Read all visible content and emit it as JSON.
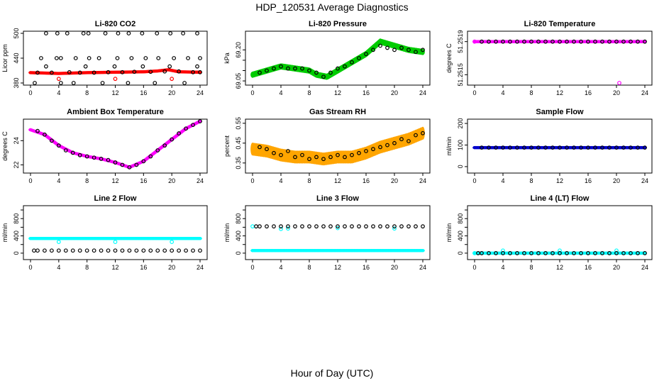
{
  "figure": {
    "title": "HDP_120531  Average Diagnostics",
    "xlabel": "Hour of Day (UTC)"
  },
  "chart_data": [
    {
      "type": "scatter",
      "title": "Li-820 CO2",
      "ylabel": "Licor ppm",
      "xlim": [
        0,
        24
      ],
      "ylim": [
        380,
        500
      ],
      "xticks": [
        0,
        4,
        8,
        12,
        16,
        20,
        24
      ],
      "yticks": [
        380,
        440,
        500
      ],
      "series": [
        {
          "color": "#ff0000",
          "style": "band",
          "x": [
            0,
            4,
            8,
            12,
            16,
            18,
            19.5,
            21,
            24
          ],
          "y": [
            405,
            403,
            405,
            406,
            407,
            409,
            412,
            407,
            406
          ],
          "spread": 2
        },
        {
          "color": "#ff0000",
          "x": [
            4,
            12,
            20
          ],
          "y": [
            390,
            390,
            390
          ]
        },
        {
          "color": "#000000",
          "x": [
            0.6,
            2.2,
            4.3,
            6.1,
            7.8,
            10.2,
            11.9,
            13.8,
            15.9,
            17.6,
            19.7,
            21.8,
            23.6
          ],
          "y": [
            380,
            420,
            380,
            380,
            420,
            380,
            420,
            380,
            420,
            380,
            420,
            380,
            420
          ]
        },
        {
          "color": "#000000",
          "x": [
            2.2,
            3.8,
            5.2,
            7.5,
            8.2,
            10.6,
            12.4,
            13.9,
            15.8,
            17.9,
            19.8,
            21.6,
            23.6
          ],
          "y": [
            500,
            500,
            500,
            500,
            500,
            500,
            500,
            500,
            500,
            500,
            500,
            500,
            500
          ]
        },
        {
          "color": "#000000",
          "x": [
            1.5,
            3.7,
            4.3,
            6.4,
            8.3,
            9.7,
            12.3,
            14.3,
            16.3,
            18.1,
            20.3,
            22.3,
            24
          ],
          "y": [
            440,
            440,
            440,
            440,
            440,
            440,
            440,
            440,
            440,
            440,
            440,
            440,
            440
          ]
        },
        {
          "color": "#000000",
          "x": [
            1,
            3,
            5.5,
            7,
            9,
            11,
            13,
            14.7,
            17,
            19,
            21,
            23,
            24
          ],
          "y": [
            405,
            405,
            406,
            405,
            405,
            406,
            406,
            407,
            407,
            408,
            408,
            406,
            406
          ]
        }
      ]
    },
    {
      "type": "scatter",
      "title": "Li-820 Pressure",
      "ylabel": "kPa",
      "xlim": [
        0,
        24
      ],
      "ylim": [
        69.04,
        69.28
      ],
      "xticks": [
        0,
        4,
        8,
        12,
        16,
        20,
        24
      ],
      "yticks": [
        69.05,
        69.1,
        69.15,
        69.2
      ],
      "ytick_labels": [
        "69.05",
        "",
        "",
        "69.20"
      ],
      "series": [
        {
          "color": "#00cc00",
          "style": "band",
          "x": [
            0,
            2,
            4,
            6,
            8,
            9,
            10.5,
            12,
            14,
            16,
            18,
            20,
            22,
            24
          ],
          "y": [
            69.08,
            69.1,
            69.12,
            69.11,
            69.1,
            69.08,
            69.07,
            69.1,
            69.14,
            69.18,
            69.24,
            69.22,
            69.2,
            69.19
          ],
          "spread": 0.018
        },
        {
          "color": "#000000",
          "x": [
            1,
            2,
            3,
            4,
            5,
            6,
            7,
            8,
            9,
            10,
            11,
            12,
            13,
            14,
            15,
            16,
            17,
            18,
            19,
            20,
            21,
            22,
            23,
            24
          ],
          "y": [
            69.09,
            69.1,
            69.11,
            69.12,
            69.11,
            69.11,
            69.11,
            69.1,
            69.09,
            69.07,
            69.09,
            69.11,
            69.12,
            69.14,
            69.16,
            69.18,
            69.2,
            69.22,
            69.21,
            69.2,
            69.21,
            69.2,
            69.19,
            69.2
          ]
        }
      ]
    },
    {
      "type": "scatter",
      "title": "Li-820 Temperature",
      "ylabel": "degrees C",
      "xlim": [
        0,
        24
      ],
      "ylim": [
        51.2514,
        51.252
      ],
      "xticks": [
        0,
        4,
        8,
        12,
        16,
        20,
        24
      ],
      "yticks": [
        51.2515,
        51.2519
      ],
      "ytick_labels": [
        "51.2515",
        "51.2519"
      ],
      "series": [
        {
          "color": "#ff00ff",
          "style": "band",
          "x": [
            0,
            24
          ],
          "y": [
            51.2519,
            51.2519
          ],
          "spread": 0
        },
        {
          "color": "#ff00ff",
          "x": [
            0,
            20.4
          ],
          "y": [
            51.2519,
            51.2514
          ]
        },
        {
          "color": "#000000",
          "x": [
            1,
            2,
            3,
            4,
            5,
            6,
            7,
            8,
            9,
            10,
            11,
            12,
            13,
            14,
            15,
            16,
            17,
            18,
            19,
            20,
            21,
            22,
            23,
            24
          ],
          "y": [
            51.2519,
            51.2519,
            51.2519,
            51.2519,
            51.2519,
            51.2519,
            51.2519,
            51.2519,
            51.2519,
            51.2519,
            51.2519,
            51.2519,
            51.2519,
            51.2519,
            51.2519,
            51.2519,
            51.2519,
            51.2519,
            51.2519,
            51.2519,
            51.2519,
            51.2519,
            51.2519,
            51.2519
          ]
        }
      ]
    },
    {
      "type": "scatter",
      "title": "Ambient Box Temperature",
      "ylabel": "degrees C",
      "xlim": [
        0,
        24
      ],
      "ylim": [
        21.5,
        25.6
      ],
      "xticks": [
        0,
        4,
        8,
        12,
        16,
        20,
        24
      ],
      "yticks": [
        22,
        24
      ],
      "series": [
        {
          "color": "#ff00ff",
          "style": "band",
          "x": [
            0,
            2,
            4,
            6,
            8,
            10,
            12,
            14,
            16,
            18,
            20,
            22,
            24
          ],
          "y": [
            24.9,
            24.5,
            23.6,
            23.0,
            22.7,
            22.5,
            22.2,
            21.8,
            22.3,
            23.2,
            24.1,
            25.0,
            25.6
          ],
          "spread": 0.08
        },
        {
          "color": "#000000",
          "x": [
            1,
            2,
            3,
            4,
            5,
            6,
            7,
            8,
            9,
            10,
            11,
            12,
            13,
            14,
            15,
            16,
            17,
            18,
            19,
            20,
            21,
            22,
            23,
            24
          ],
          "y": [
            24.8,
            24.5,
            24.0,
            23.6,
            23.2,
            23.0,
            22.8,
            22.7,
            22.6,
            22.5,
            22.4,
            22.2,
            22.0,
            21.8,
            22.0,
            22.3,
            22.7,
            23.2,
            23.6,
            24.1,
            24.6,
            25.0,
            25.3,
            25.6
          ]
        }
      ]
    },
    {
      "type": "scatter",
      "title": "Gas Stream RH",
      "ylabel": "percent",
      "xlim": [
        0,
        24
      ],
      "ylim": [
        0.31,
        0.56
      ],
      "xticks": [
        0,
        4,
        8,
        12,
        16,
        20,
        24
      ],
      "yticks": [
        0.35,
        0.45,
        0.55
      ],
      "series": [
        {
          "color": "#ffa500",
          "style": "band",
          "x": [
            0,
            2,
            4,
            6,
            8,
            10,
            12,
            14,
            16,
            18,
            20,
            22,
            24
          ],
          "y": [
            0.42,
            0.41,
            0.39,
            0.38,
            0.38,
            0.37,
            0.38,
            0.38,
            0.4,
            0.43,
            0.45,
            0.47,
            0.5
          ],
          "spread": 0.04
        },
        {
          "color": "#000000",
          "x": [
            1,
            2,
            3,
            4,
            5,
            6,
            7,
            8,
            9,
            10,
            11,
            12,
            13,
            14,
            15,
            16,
            17,
            18,
            19,
            20,
            21,
            22,
            23,
            24
          ],
          "y": [
            0.43,
            0.42,
            0.4,
            0.39,
            0.41,
            0.38,
            0.39,
            0.37,
            0.38,
            0.37,
            0.38,
            0.39,
            0.38,
            0.39,
            0.4,
            0.41,
            0.42,
            0.43,
            0.44,
            0.45,
            0.47,
            0.46,
            0.49,
            0.5
          ]
        }
      ]
    },
    {
      "type": "scatter",
      "title": "Sample Flow",
      "ylabel": "ml/min",
      "xlim": [
        0,
        24
      ],
      "ylim": [
        -20,
        210
      ],
      "xticks": [
        0,
        4,
        8,
        12,
        16,
        20,
        24
      ],
      "yticks": [
        0,
        100,
        200
      ],
      "series": [
        {
          "color": "#0000cc",
          "style": "band",
          "x": [
            0,
            24
          ],
          "y": [
            88,
            88
          ],
          "spread": 4
        },
        {
          "color": "#000000",
          "x": [
            1,
            2,
            3,
            4,
            5,
            6,
            7,
            8,
            9,
            10,
            11,
            12,
            13,
            14,
            15,
            16,
            17,
            18,
            19,
            20,
            21,
            22,
            23,
            24
          ],
          "y": [
            88,
            88,
            88,
            88,
            88,
            88,
            88,
            88,
            88,
            88,
            88,
            88,
            88,
            88,
            88,
            88,
            88,
            88,
            88,
            88,
            88,
            88,
            88,
            88
          ]
        }
      ]
    },
    {
      "type": "scatter",
      "title": "Line 2 Flow",
      "ylabel": "ml/min",
      "xlim": [
        0,
        24
      ],
      "ylim": [
        -100,
        1050
      ],
      "xticks": [
        0,
        4,
        8,
        12,
        16,
        20,
        24
      ],
      "yticks": [
        0,
        200,
        400,
        600,
        800,
        1000
      ],
      "ytick_labels": [
        "0",
        "",
        "400",
        "",
        "800",
        ""
      ],
      "series": [
        {
          "color": "#00ffff",
          "style": "band",
          "x": [
            0,
            24
          ],
          "y": [
            340,
            340
          ],
          "spread": 25
        },
        {
          "color": "#00ffff",
          "x": [
            4,
            12,
            20
          ],
          "y": [
            260,
            260,
            260
          ]
        },
        {
          "color": "#000000",
          "x": [
            0.5,
            1,
            2,
            3,
            4,
            5,
            6,
            7,
            8,
            9,
            10,
            11,
            12,
            13,
            14,
            15,
            16,
            17,
            18,
            19,
            20,
            21,
            22,
            23,
            24
          ],
          "y": [
            60,
            60,
            60,
            60,
            60,
            60,
            60,
            60,
            60,
            60,
            60,
            60,
            60,
            60,
            60,
            60,
            60,
            60,
            60,
            60,
            60,
            60,
            60,
            60,
            60
          ]
        }
      ]
    },
    {
      "type": "scatter",
      "title": "Line 3 Flow",
      "ylabel": "ml/min",
      "xlim": [
        0,
        24
      ],
      "ylim": [
        -100,
        1050
      ],
      "xticks": [
        0,
        4,
        8,
        12,
        16,
        20,
        24
      ],
      "yticks": [
        0,
        200,
        400,
        600,
        800,
        1000
      ],
      "ytick_labels": [
        "0",
        "",
        "400",
        "",
        "800",
        ""
      ],
      "series": [
        {
          "color": "#00ffff",
          "style": "band",
          "x": [
            0,
            24
          ],
          "y": [
            60,
            60
          ],
          "spread": 15
        },
        {
          "color": "#00ffff",
          "x": [
            0,
            4,
            5,
            12,
            20
          ],
          "y": [
            620,
            560,
            570,
            580,
            570
          ]
        },
        {
          "color": "#000000",
          "x": [
            0.5,
            1,
            2,
            3,
            4,
            5,
            6,
            7,
            8,
            9,
            10,
            11,
            12,
            13,
            14,
            15,
            16,
            17,
            18,
            19,
            20,
            21,
            22,
            23,
            24
          ],
          "y": [
            620,
            620,
            620,
            620,
            620,
            620,
            620,
            620,
            620,
            620,
            620,
            620,
            620,
            620,
            620,
            620,
            620,
            620,
            620,
            620,
            620,
            620,
            620,
            620,
            620
          ]
        }
      ]
    },
    {
      "type": "scatter",
      "title": "Line 4 (LT) Flow",
      "ylabel": "ml/min",
      "xlim": [
        0,
        24
      ],
      "ylim": [
        -100,
        1050
      ],
      "xticks": [
        0,
        4,
        8,
        12,
        16,
        20,
        24
      ],
      "yticks": [
        0,
        200,
        400,
        600,
        800,
        1000
      ],
      "ytick_labels": [
        "0",
        "",
        "400",
        "",
        "800",
        ""
      ],
      "series": [
        {
          "color": "#00ffff",
          "style": "band",
          "x": [
            0,
            24
          ],
          "y": [
            0,
            0
          ],
          "spread": 6
        },
        {
          "color": "#00ffff",
          "x": [
            0,
            4,
            12,
            20
          ],
          "y": [
            0,
            60,
            60,
            60
          ]
        },
        {
          "color": "#000000",
          "x": [
            0.5,
            1,
            2,
            3,
            4,
            5,
            6,
            7,
            8,
            9,
            10,
            11,
            12,
            13,
            14,
            15,
            16,
            17,
            18,
            19,
            20,
            21,
            22,
            23,
            24
          ],
          "y": [
            0,
            0,
            0,
            0,
            0,
            0,
            0,
            0,
            0,
            0,
            0,
            0,
            0,
            0,
            0,
            0,
            0,
            0,
            0,
            0,
            0,
            0,
            0,
            0,
            0
          ]
        }
      ]
    }
  ]
}
